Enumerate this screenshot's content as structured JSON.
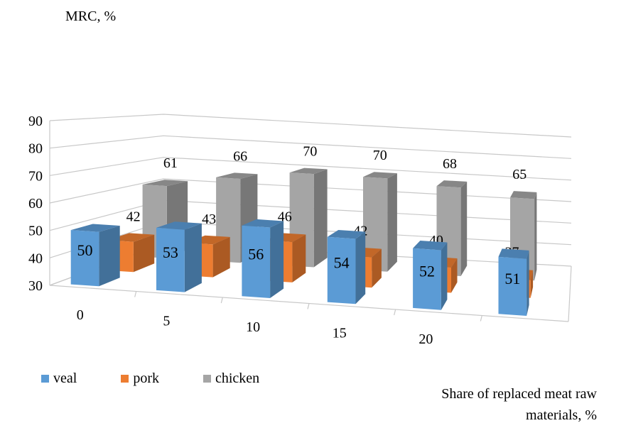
{
  "chart_data": {
    "type": "bar",
    "variant": "3d-clustered-column",
    "ylabel": "MRC, %",
    "xlabel": "Share of replaced meat raw materials, %",
    "categories": [
      "0",
      "5",
      "10",
      "15",
      "20",
      ""
    ],
    "ylim": [
      30,
      90
    ],
    "yticks": [
      30,
      40,
      50,
      60,
      70,
      80,
      90
    ],
    "grid": true,
    "legend_position": "bottom-left",
    "series": [
      {
        "name": "veal",
        "values": [
          50,
          53,
          56,
          54,
          52,
          51
        ],
        "color": "#5b9bd5"
      },
      {
        "name": "pork",
        "values": [
          42,
          43,
          46,
          42,
          40,
          37
        ],
        "color": "#ed7d31"
      },
      {
        "name": "chicken",
        "values": [
          61,
          66,
          70,
          70,
          68,
          65
        ],
        "color": "#a5a5a5"
      }
    ]
  }
}
